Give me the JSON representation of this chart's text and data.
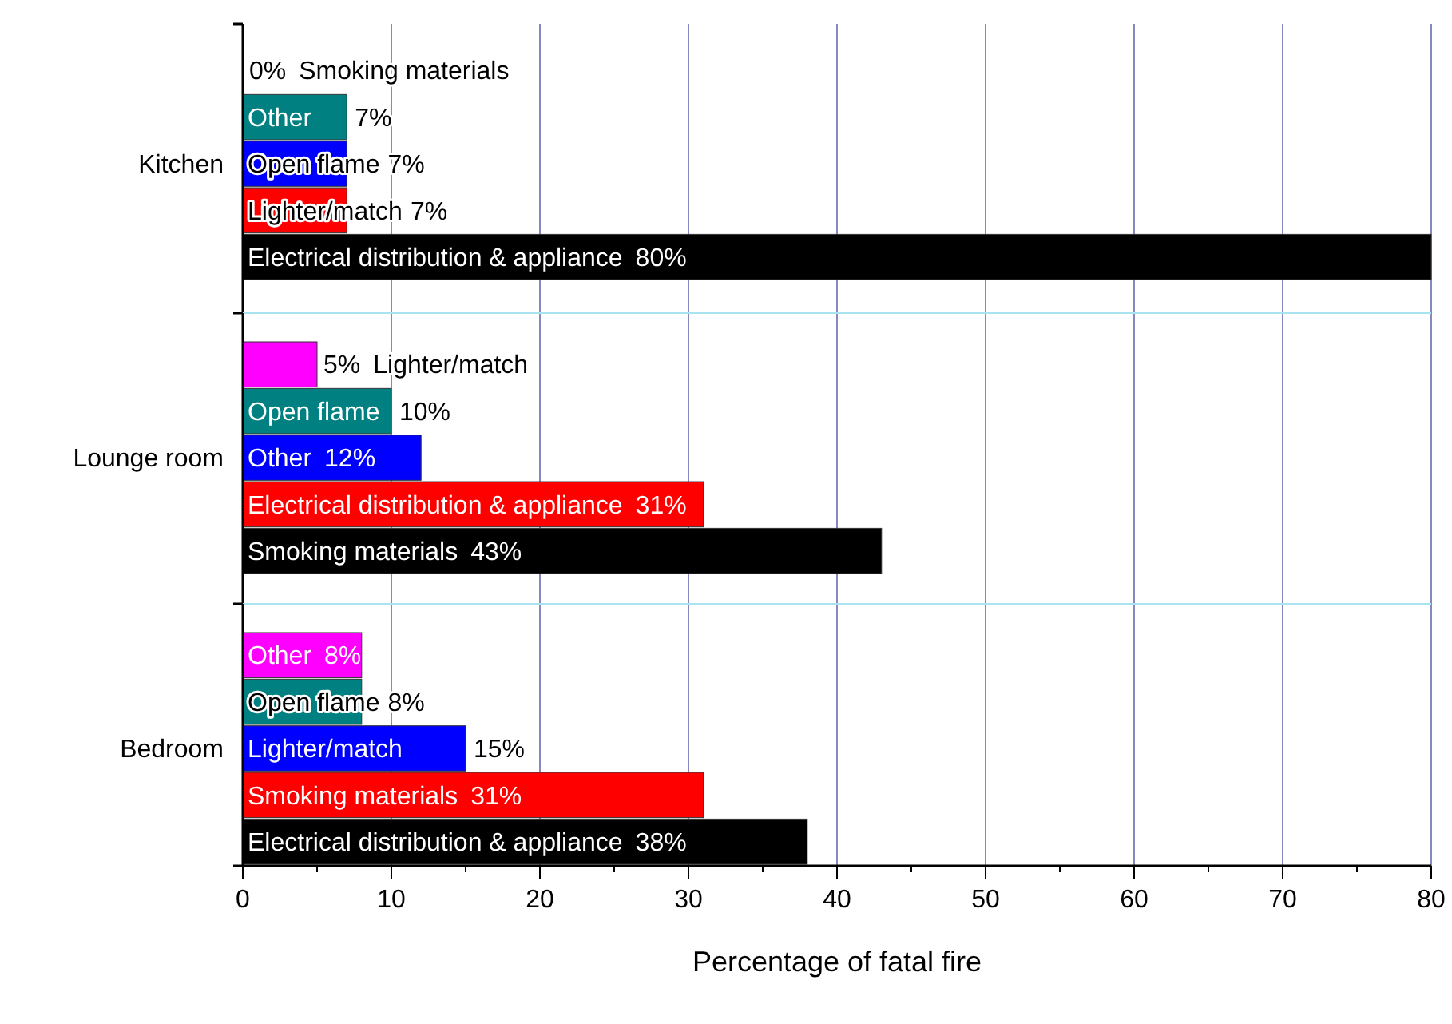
{
  "chart_data": [
    {
      "type": "bar",
      "orientation": "horizontal",
      "ylabel": "Kitchen",
      "categories": [
        "Smoking materials",
        "Other",
        "Open flame",
        "Lighter/match",
        "Electrical distribution & appliance"
      ],
      "values": [
        0,
        7,
        7,
        7,
        80
      ],
      "colors": [
        "#ff00ff",
        "#008080",
        "#0000ff",
        "#ff0000",
        "#000000"
      ],
      "value_labels": [
        "0%",
        "7%",
        "7%",
        "7%",
        "80%"
      ],
      "xlim": [
        0,
        80
      ],
      "xticks": [
        0,
        10,
        20,
        30,
        40,
        50,
        60,
        70,
        80
      ],
      "grid": "x",
      "tick_labels": "y"
    },
    {
      "type": "bar",
      "orientation": "horizontal",
      "ylabel": "Lounge room",
      "categories": [
        "Lighter/match",
        "Open flame",
        "Other",
        "Electrical distribution & appliance",
        "Smoking materials"
      ],
      "values": [
        5,
        10,
        12,
        31,
        43
      ],
      "colors": [
        "#ff00ff",
        "#008080",
        "#0000ff",
        "#ff0000",
        "#000000"
      ],
      "value_labels": [
        "5%",
        "10%",
        "12%",
        "31%",
        "43%"
      ],
      "xlim": [
        0,
        80
      ],
      "xticks": [
        0,
        10,
        20,
        30,
        40,
        50,
        60,
        70,
        80
      ],
      "grid": "x",
      "tick_labels": "y"
    },
    {
      "type": "bar",
      "orientation": "horizontal",
      "ylabel": "Bedroom",
      "xlabel": "Percentage of fatal fire",
      "categories": [
        "Other",
        "Open flame",
        "Lighter/match",
        "Smoking materials",
        "Electrical distribution & appliance"
      ],
      "values": [
        8,
        8,
        15,
        31,
        38
      ],
      "colors": [
        "#ff00ff",
        "#008080",
        "#0000ff",
        "#ff0000",
        "#000000"
      ],
      "value_labels": [
        "8%",
        "8%",
        "15%",
        "31%",
        "38%"
      ],
      "xlim": [
        0,
        80
      ],
      "xticks": [
        0,
        {
          "value": 5,
          "label": null
        },
        10,
        {
          "value": 15,
          "label": null
        },
        20,
        {
          "value": 25,
          "label": null
        },
        30,
        {
          "value": 35,
          "label": null
        },
        40,
        {
          "value": 45,
          "label": null
        },
        50,
        {
          "value": 55,
          "label": null
        },
        60,
        {
          "value": 65,
          "label": null
        },
        70,
        {
          "value": 75,
          "label": null
        },
        80
      ],
      "grid": "x"
    }
  ]
}
